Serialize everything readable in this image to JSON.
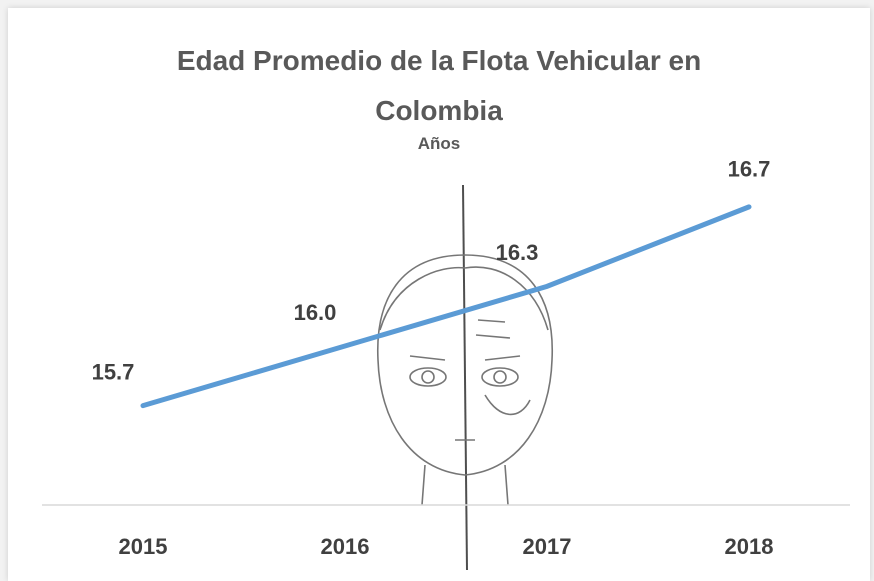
{
  "chart_data": {
    "type": "line",
    "title": "Edad Promedio de la Flota Vehicular en Colombia",
    "subtitle": "Años",
    "categories": [
      "2015",
      "2016",
      "2017",
      "2018"
    ],
    "values": [
      15.7,
      16.0,
      16.3,
      16.7
    ],
    "value_labels": [
      "15.7",
      "16.0",
      "16.3",
      "16.7"
    ],
    "color": "#5b9bd5",
    "ylim": [
      15.2,
      16.8
    ]
  }
}
